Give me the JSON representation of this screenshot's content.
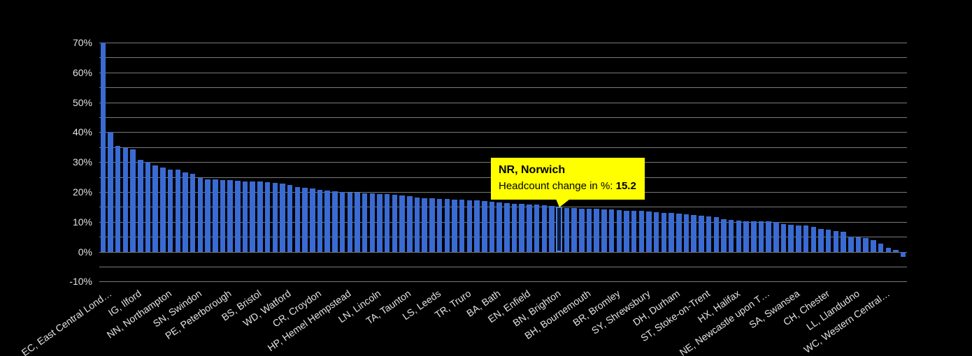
{
  "chart_data": {
    "type": "bar",
    "series_name": "Headcount change in %",
    "ylim": [
      -10,
      70
    ],
    "grid_step": 5,
    "grid": true,
    "legend_position": "none",
    "y_ticks": [
      {
        "value": 70,
        "label": "70%"
      },
      {
        "value": 60,
        "label": "60%"
      },
      {
        "value": 50,
        "label": "50%"
      },
      {
        "value": 40,
        "label": "40%"
      },
      {
        "value": 30,
        "label": "30%"
      },
      {
        "value": 20,
        "label": "20%"
      },
      {
        "value": 10,
        "label": "10%"
      },
      {
        "value": 0,
        "label": "0%"
      },
      {
        "value": -10,
        "label": "-10%"
      }
    ],
    "values": [
      70,
      40,
      35.4,
      34.8,
      34.2,
      30.8,
      30.1,
      29,
      28.2,
      27.6,
      27.4,
      26.6,
      26,
      24.6,
      24.3,
      24.2,
      24,
      23.9,
      23.8,
      23.6,
      23.5,
      23.4,
      23.2,
      23,
      22.7,
      22.4,
      21.6,
      21.4,
      21.1,
      20.8,
      20.5,
      20.3,
      20,
      19.8,
      19.7,
      19.6,
      19.5,
      19.3,
      19.2,
      19,
      18.9,
      18.6,
      18.2,
      17.9,
      17.8,
      17.7,
      17.6,
      17.5,
      17.4,
      17.2,
      17.1,
      16.9,
      16.7,
      16.4,
      16.2,
      16.1,
      16,
      15.8,
      15.7,
      15.6,
      15.4,
      15.2,
      14.7,
      14.6,
      14.5,
      14.4,
      14.3,
      14.2,
      14.1,
      13.9,
      13.8,
      13.7,
      13.6,
      13.5,
      13.3,
      13.1,
      12.9,
      12.7,
      12.5,
      12.3,
      12.1,
      11.9,
      11.5,
      11,
      10.6,
      10.4,
      10.3,
      10.2,
      10.1,
      10.1,
      10,
      9.2,
      9,
      8.9,
      8.7,
      8.4,
      7.7,
      7.3,
      7,
      6.7,
      5.1,
      4.8,
      4.6,
      4,
      2.8,
      1.3,
      0.7,
      -1.8
    ],
    "x_labels": [
      {
        "index": 0,
        "text": "EC, East Central Lond…"
      },
      {
        "index": 4,
        "text": "IG, Ilford"
      },
      {
        "index": 8,
        "text": "NN, Northampton"
      },
      {
        "index": 12,
        "text": "SN, Swindon"
      },
      {
        "index": 16,
        "text": "PE, Peterborough"
      },
      {
        "index": 20,
        "text": "BS, Bristol"
      },
      {
        "index": 24,
        "text": "WD, Watford"
      },
      {
        "index": 28,
        "text": "CR, Croydon"
      },
      {
        "index": 32,
        "text": "HP, Hemel Hempstead"
      },
      {
        "index": 36,
        "text": "LN, Lincoln"
      },
      {
        "index": 40,
        "text": "TA, Taunton"
      },
      {
        "index": 44,
        "text": "LS, Leeds"
      },
      {
        "index": 48,
        "text": "TR, Truro"
      },
      {
        "index": 52,
        "text": "BA, Bath"
      },
      {
        "index": 56,
        "text": "EN, Enfield"
      },
      {
        "index": 60,
        "text": "BN, Brighton"
      },
      {
        "index": 64,
        "text": "BH, Bournemouth"
      },
      {
        "index": 68,
        "text": "BR, Bromley"
      },
      {
        "index": 72,
        "text": "SY, Shrewsbury"
      },
      {
        "index": 76,
        "text": "DH, Durham"
      },
      {
        "index": 80,
        "text": "ST, Stoke-on-Trent"
      },
      {
        "index": 84,
        "text": "HX, Halifax"
      },
      {
        "index": 88,
        "text": "NE, Newcastle upon T…"
      },
      {
        "index": 92,
        "text": "SA, Swansea"
      },
      {
        "index": 96,
        "text": "CH, Chester"
      },
      {
        "index": 100,
        "text": "LL, Llandudno"
      },
      {
        "index": 104,
        "text": "WC, Western Central…"
      }
    ],
    "highlight": {
      "index": 61,
      "name": "NR, Norwich",
      "value": 15.2
    }
  },
  "tooltip": {
    "title": "NR, Norwich",
    "label": "Headcount change in %: ",
    "value": "15.2"
  },
  "colors": {
    "background": "#000000",
    "bar": "#3a6bd2",
    "highlight_border": "#4d7de0",
    "highlight_fill": "#0c1b38",
    "grid": "#7a7a7a",
    "axis_text": "#e2e2e2",
    "tooltip_bg": "#ffff00",
    "tooltip_text": "#000000"
  }
}
